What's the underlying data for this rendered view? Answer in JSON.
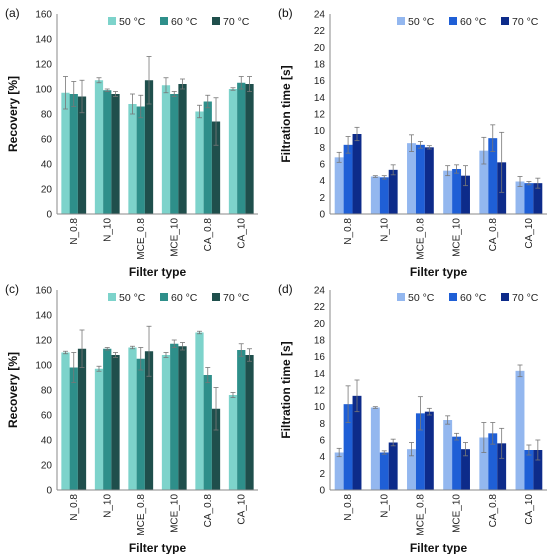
{
  "chart_data": [
    {
      "type": "bar",
      "panel_label": "(a)",
      "xlabel": "Filter type",
      "ylabel": "Recovery [%]",
      "ylim": [
        0,
        160
      ],
      "yticks": [
        0,
        20,
        40,
        60,
        80,
        100,
        120,
        140,
        160
      ],
      "grid": false,
      "legend": "top-right",
      "categories": [
        "N_0.8",
        "N_10",
        "MCE_0.8",
        "MCE_10",
        "CA_0.8",
        "CA_10"
      ],
      "series": [
        {
          "name": "50 °C",
          "color": "#7dd3cb",
          "values": [
            97,
            107,
            88,
            103,
            82,
            100
          ],
          "errors": [
            13,
            2,
            8,
            6,
            5,
            1
          ]
        },
        {
          "name": "60 °C",
          "color": "#2e8f8a",
          "values": [
            96,
            99,
            86,
            96,
            90,
            105
          ],
          "errors": [
            10,
            1,
            9,
            2,
            5,
            5
          ]
        },
        {
          "name": "70 °C",
          "color": "#1f4f4c",
          "values": [
            94,
            96,
            107,
            104,
            74,
            104
          ],
          "errors": [
            13,
            2,
            19,
            4,
            19,
            6
          ]
        }
      ]
    },
    {
      "type": "bar",
      "panel_label": "(b)",
      "xlabel": "Filter type",
      "ylabel": "Filtration time [s]",
      "ylim": [
        0,
        24
      ],
      "yticks": [
        0,
        2,
        4,
        6,
        8,
        10,
        12,
        14,
        16,
        18,
        20,
        22,
        24
      ],
      "grid": false,
      "legend": "top-right",
      "categories": [
        "N_0.8",
        "N_10",
        "MCE_0.8",
        "MCE_10",
        "CA_0.8",
        "CA_10"
      ],
      "series": [
        {
          "name": "50 °C",
          "color": "#93b7ef",
          "values": [
            6.8,
            4.5,
            8.5,
            5.2,
            7.6,
            3.9
          ],
          "errors": [
            0.6,
            0.1,
            1.0,
            0.6,
            1.6,
            0.6
          ]
        },
        {
          "name": "60 °C",
          "color": "#1f5fd6",
          "values": [
            8.3,
            4.4,
            8.3,
            5.4,
            9.1,
            3.7
          ],
          "errors": [
            1.0,
            0.2,
            0.4,
            0.5,
            1.6,
            0.2
          ]
        },
        {
          "name": "70 °C",
          "color": "#0d2b8a",
          "values": [
            9.6,
            5.3,
            8.0,
            4.6,
            6.2,
            3.7
          ],
          "errors": [
            0.8,
            0.6,
            0.2,
            1.2,
            3.6,
            0.6
          ]
        }
      ]
    },
    {
      "type": "bar",
      "panel_label": "(c)",
      "xlabel": "Filter type",
      "ylabel": "Recovery [%]",
      "ylim": [
        0,
        160
      ],
      "yticks": [
        0,
        20,
        40,
        60,
        80,
        100,
        120,
        140,
        160
      ],
      "grid": false,
      "legend": "top-right",
      "categories": [
        "N_0.8",
        "N_10",
        "MCE_0.8",
        "MCE_10",
        "CA_0.8",
        "CA_10"
      ],
      "series": [
        {
          "name": "50 °C",
          "color": "#7dd3cb",
          "values": [
            110,
            97,
            114,
            108,
            126,
            76
          ],
          "errors": [
            1,
            2,
            1,
            2,
            1,
            2
          ]
        },
        {
          "name": "60 °C",
          "color": "#2e8f8a",
          "values": [
            98,
            113,
            105,
            117,
            92,
            112
          ],
          "errors": [
            12,
            1,
            9,
            3,
            6,
            5
          ]
        },
        {
          "name": "70 °C",
          "color": "#1f4f4c",
          "values": [
            113,
            108,
            111,
            115,
            65,
            108
          ],
          "errors": [
            15,
            2,
            20,
            3,
            17,
            5
          ]
        }
      ]
    },
    {
      "type": "bar",
      "panel_label": "(d)",
      "xlabel": "Filter type",
      "ylabel": "Filtration time [s]",
      "ylim": [
        0,
        24
      ],
      "yticks": [
        0,
        2,
        4,
        6,
        8,
        10,
        12,
        14,
        16,
        18,
        20,
        22,
        24
      ],
      "grid": false,
      "legend": "top-right",
      "categories": [
        "N_0.8",
        "N_10",
        "MCE_0.8",
        "MCE_10",
        "CA_0.8",
        "CA_10"
      ],
      "series": [
        {
          "name": "50 °C",
          "color": "#93b7ef",
          "values": [
            4.5,
            9.9,
            4.9,
            8.4,
            6.3,
            14.3
          ],
          "errors": [
            0.5,
            0.1,
            0.8,
            0.5,
            1.8,
            0.7
          ]
        },
        {
          "name": "60 °C",
          "color": "#1f5fd6",
          "values": [
            10.3,
            4.5,
            9.2,
            6.4,
            6.8,
            4.8
          ],
          "errors": [
            2.2,
            0.2,
            2.0,
            0.4,
            1.3,
            0.6
          ]
        },
        {
          "name": "70 °C",
          "color": "#0d2b8a",
          "values": [
            11.3,
            5.7,
            9.4,
            4.9,
            5.6,
            4.8
          ],
          "errors": [
            1.9,
            0.4,
            0.4,
            0.8,
            1.8,
            1.2
          ]
        }
      ]
    }
  ]
}
